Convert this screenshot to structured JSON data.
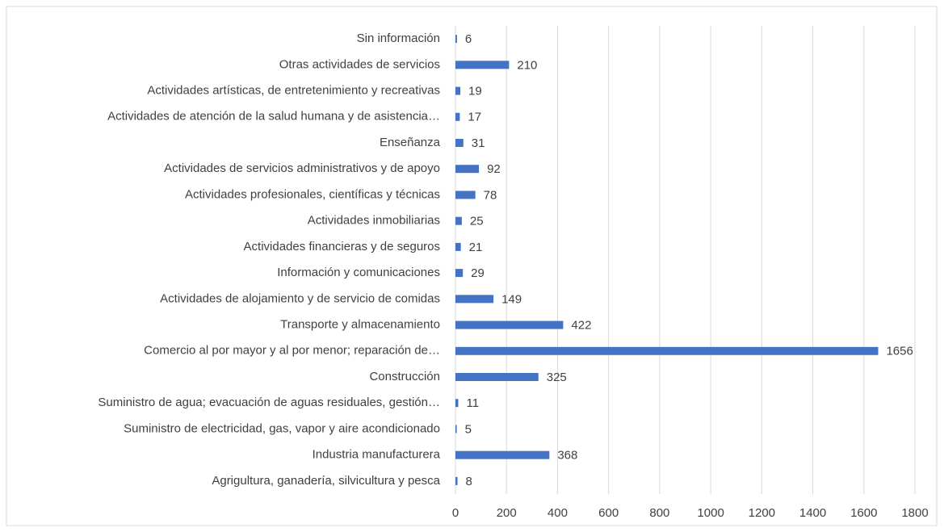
{
  "chart_data": {
    "type": "bar",
    "orientation": "horizontal",
    "categories": [
      "Sin información",
      "Otras actividades de servicios",
      "Actividades artísticas, de entretenimiento y recreativas",
      "Actividades de atención de la salud humana y de asistencia…",
      "Enseñanza",
      "Actividades de servicios administrativos y de apoyo",
      "Actividades profesionales, científicas y técnicas",
      "Actividades inmobiliarias",
      "Actividades financieras y de seguros",
      "Información y comunicaciones",
      "Actividades de alojamiento y de servicio de comidas",
      "Transporte y almacenamiento",
      "Comercio al por mayor y al por menor; reparación de…",
      "Construcción",
      "Suministro de agua; evacuación de aguas residuales, gestión…",
      "Suministro de electricidad, gas, vapor y aire acondicionado",
      "Industria manufacturera",
      "Agrigultura, ganadería, silvicultura y pesca"
    ],
    "values": [
      6,
      210,
      19,
      17,
      31,
      92,
      78,
      25,
      21,
      29,
      149,
      422,
      1656,
      325,
      11,
      5,
      368,
      8
    ],
    "color": "#4472c4",
    "xlim": [
      0,
      1800
    ],
    "xticks": [
      0,
      200,
      400,
      600,
      800,
      1000,
      1200,
      1400,
      1600,
      1800
    ],
    "grid": true
  }
}
